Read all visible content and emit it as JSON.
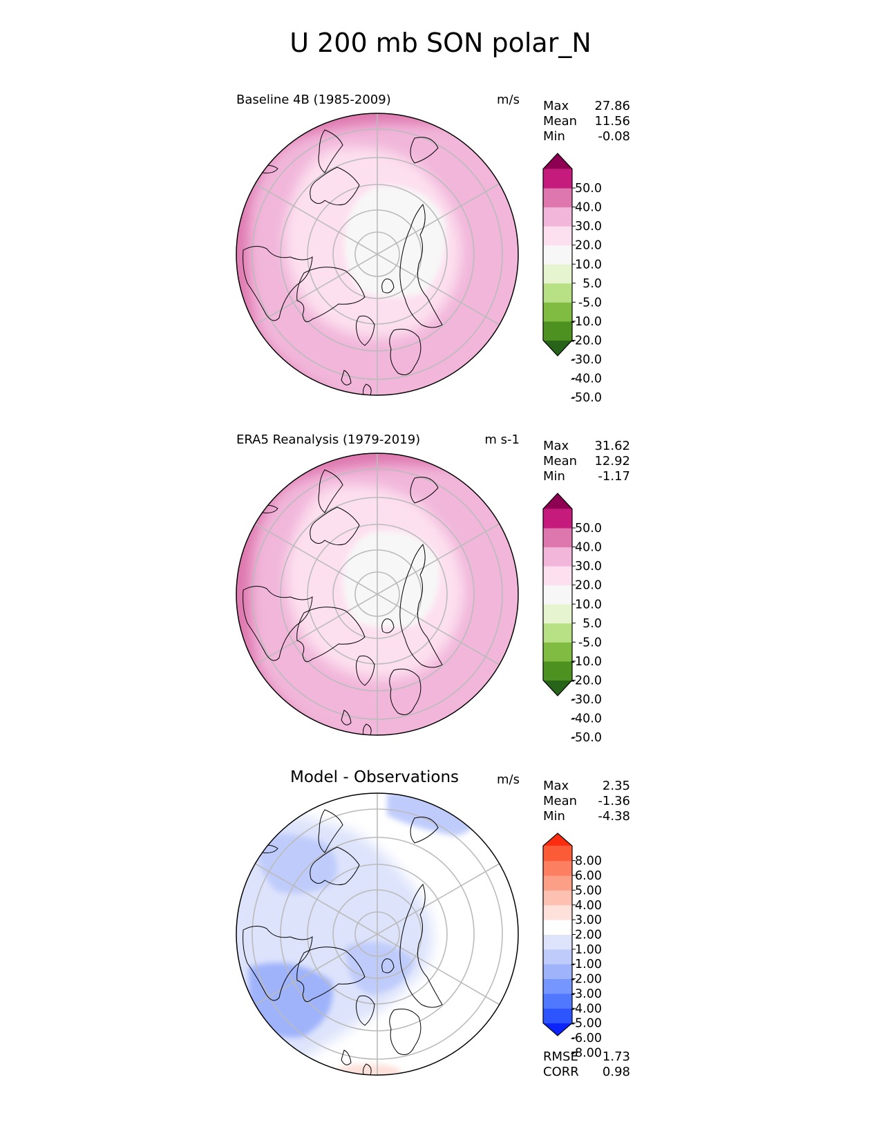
{
  "figure_title": "U 200 mb SON polar_N",
  "colors": {
    "field": [
      "#276419",
      "#4d9221",
      "#7fbc41",
      "#b8e186",
      "#e6f5d0",
      "#f7f7f7",
      "#fde0ef",
      "#f1b6da",
      "#de77ae",
      "#c51b7d",
      "#8e0152"
    ],
    "field_lowest": "#1f5a14",
    "diff": [
      "#0b24fb",
      "#2d55ff",
      "#5078ff",
      "#7595ff",
      "#9fb3fb",
      "#bfccfb",
      "#dde3fb",
      "#ffffff",
      "#fde1da",
      "#fcc1b0",
      "#fb9f87",
      "#fb7f60",
      "#fb5c37",
      "#fb2d10"
    ],
    "graticule": "#bbbbbb",
    "coast": "#000000"
  },
  "panels": [
    {
      "title": "Baseline 4B (1985-2009)",
      "units": "m/s",
      "stats": [
        {
          "label": "Max",
          "value": "27.86"
        },
        {
          "label": "Mean",
          "value": "11.56"
        },
        {
          "label": "Min",
          "value": "-0.08"
        }
      ],
      "colorbar": {
        "ticks": [
          "50.0",
          "40.0",
          "30.0",
          "20.0",
          "10.0",
          "5.0",
          "-5.0",
          "-10.0",
          "-20.0",
          "-30.0",
          "-40.0",
          "-50.0"
        ]
      }
    },
    {
      "title": "ERA5 Reanalysis (1979-2019)",
      "units": "m s-1",
      "stats": [
        {
          "label": "Max",
          "value": "31.62"
        },
        {
          "label": "Mean",
          "value": "12.92"
        },
        {
          "label": "Min",
          "value": "-1.17"
        }
      ],
      "colorbar": {
        "ticks": [
          "50.0",
          "40.0",
          "30.0",
          "20.0",
          "10.0",
          "5.0",
          "-5.0",
          "-10.0",
          "-20.0",
          "-30.0",
          "-40.0",
          "-50.0"
        ]
      }
    },
    {
      "title": "Model - Observations",
      "units": "m/s",
      "stats": [
        {
          "label": "Max",
          "value": "2.35"
        },
        {
          "label": "Mean",
          "value": "-1.36"
        },
        {
          "label": "Min",
          "value": "-4.38"
        }
      ],
      "colorbar": {
        "ticks": [
          "8.00",
          "6.00",
          "5.00",
          "4.00",
          "3.00",
          "2.00",
          "1.00",
          "-1.00",
          "-2.00",
          "-3.00",
          "-4.00",
          "-5.00",
          "-6.00",
          "-8.00"
        ]
      },
      "metrics": [
        {
          "label": "RMSE",
          "value": "1.73"
        },
        {
          "label": "CORR",
          "value": "0.98"
        }
      ]
    }
  ],
  "chart_data": {
    "type": "polar contour maps",
    "projection": "North polar stereographic",
    "field_levels": [
      -50,
      -40,
      -30,
      -20,
      -10,
      -5,
      5,
      10,
      20,
      30,
      40,
      50
    ],
    "diff_levels": [
      -8,
      -6,
      -5,
      -4,
      -3,
      -2,
      -1,
      1,
      2,
      3,
      4,
      5,
      6,
      8
    ],
    "panels": [
      {
        "name": "Baseline 4B (1985-2009)",
        "units": "m/s",
        "max": 27.86,
        "mean": 11.56,
        "min": -0.08
      },
      {
        "name": "ERA5 Reanalysis (1979-2019)",
        "units": "m s-1",
        "max": 31.62,
        "mean": 12.92,
        "min": -1.17
      },
      {
        "name": "Model - Observations",
        "units": "m/s",
        "max": 2.35,
        "mean": -1.36,
        "min": -4.38,
        "rmse": 1.73,
        "corr": 0.98
      }
    ]
  }
}
